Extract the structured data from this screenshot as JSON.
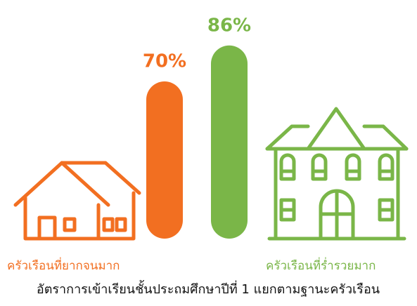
{
  "chart_data": {
    "type": "bar",
    "title": "อัตราการเข้าเรียนชั้นประถมศึกษาปีที่ 1 แยกตามฐานะครัวเรือน",
    "categories": [
      "ครัวเรือนที่ยากจนมาก",
      "ครัวเรือนที่ร่ำรวยมาก"
    ],
    "values": [
      70,
      86
    ],
    "value_labels": [
      "70%",
      "86%"
    ],
    "colors": [
      "#f26f21",
      "#7ab648"
    ],
    "ylim": [
      0,
      100
    ]
  }
}
